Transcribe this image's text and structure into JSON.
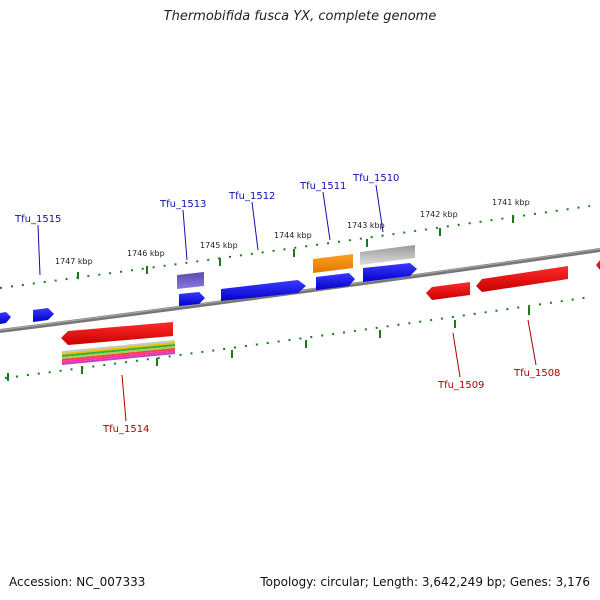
{
  "title": "Thermobifida fusca YX, complete genome",
  "footer": {
    "accession": "Accession: NC_007333",
    "summary": "Topology: circular; Length: 3,642,249 bp; Genes: 3,176"
  },
  "scale_labels": [
    "1747 kbp",
    "1746 kbp",
    "1745 kbp",
    "1744 kbp",
    "1743 kbp",
    "1742 kbp",
    "1741 kbp"
  ],
  "genes": {
    "forward": [
      "Tfu_1515",
      "Tfu_1513",
      "Tfu_1512",
      "Tfu_1511",
      "Tfu_1510"
    ],
    "reverse": [
      "Tfu_1514",
      "Tfu_1509",
      "Tfu_1508"
    ]
  },
  "colors": {
    "forward_label": "#1010b0",
    "reverse_label": "#b00000",
    "forward_gene": "#0000ee",
    "reverse_gene": "#ee0000",
    "scale_ticks": "#1a7a1a",
    "backbone": "#777777",
    "orange_gene": "#ee8800",
    "grey_gene": "#b0b0b0",
    "purple_gene": "#6a5acd"
  }
}
